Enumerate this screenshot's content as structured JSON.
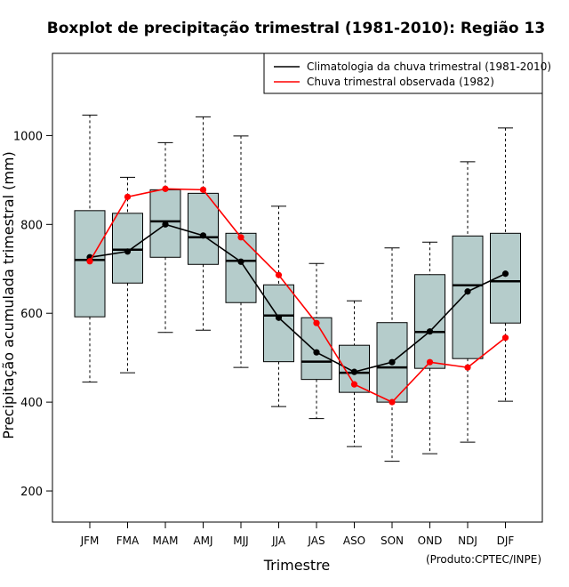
{
  "chart_data": {
    "type": "box",
    "title": "Boxplot de precipitação trimestral (1981-2010): Região 13",
    "xlabel": "Trimestre",
    "ylabel": "Precipitação acumulada trimestral (mm)",
    "ylim": [
      130,
      1185
    ],
    "yticks": [
      200,
      400,
      600,
      800,
      1000
    ],
    "categories": [
      "JFM",
      "FMA",
      "MAM",
      "AMJ",
      "MJJ",
      "JJA",
      "JAS",
      "ASO",
      "SON",
      "OND",
      "NDJ",
      "DJF"
    ],
    "boxes": [
      {
        "min": 445,
        "q1": 592,
        "median": 720,
        "q3": 831,
        "max": 1046
      },
      {
        "min": 466,
        "q1": 668,
        "median": 743,
        "q3": 825,
        "max": 906
      },
      {
        "min": 557,
        "q1": 726,
        "median": 807,
        "q3": 878,
        "max": 984
      },
      {
        "min": 562,
        "q1": 710,
        "median": 771,
        "q3": 870,
        "max": 1042
      },
      {
        "min": 478,
        "q1": 624,
        "median": 718,
        "q3": 780,
        "max": 999
      },
      {
        "min": 390,
        "q1": 491,
        "median": 595,
        "q3": 664,
        "max": 841
      },
      {
        "min": 363,
        "q1": 451,
        "median": 491,
        "q3": 590,
        "max": 712
      },
      {
        "min": 300,
        "q1": 422,
        "median": 466,
        "q3": 528,
        "max": 628
      },
      {
        "min": 267,
        "q1": 400,
        "median": 478,
        "q3": 579,
        "max": 747
      },
      {
        "min": 284,
        "q1": 476,
        "median": 558,
        "q3": 687,
        "max": 760
      },
      {
        "min": 310,
        "q1": 498,
        "median": 663,
        "q3": 774,
        "max": 941
      },
      {
        "min": 402,
        "q1": 578,
        "median": 672,
        "q3": 780,
        "max": 1017
      }
    ],
    "series": [
      {
        "name": "Climatologia da chuva trimestral (1981-2010)",
        "color": "#000000",
        "values": [
          726,
          739,
          800,
          775,
          716,
          590,
          512,
          468,
          490,
          559,
          649,
          689
        ]
      },
      {
        "name": "Chuva trimestral observada (1982)",
        "color": "#ff0000",
        "values": [
          717,
          862,
          880,
          878,
          771,
          686,
          578,
          440,
          400,
          490,
          478,
          545
        ]
      }
    ],
    "box_fill": "#b5cccb",
    "legend_position": "top-right"
  },
  "credit": "(Produto:CPTEC/INPE)"
}
